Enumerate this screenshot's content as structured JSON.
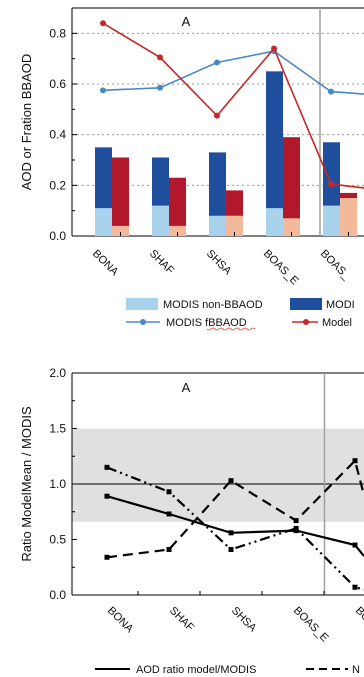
{
  "chart_data": [
    {
      "type": "bar",
      "panel_label": "A",
      "ylabel": "AOD or Fration BBAOD",
      "ylim": [
        0,
        0.9
      ],
      "yticks": [
        "0.0",
        "0.2",
        "0.4",
        "0.6",
        "0.8"
      ],
      "categories": [
        "BONA",
        "SHAF",
        "SHSA",
        "BOAS_E",
        "BOAS_"
      ],
      "bar_series": [
        {
          "name": "MODIS non-BBAOD",
          "kind": "bar-base",
          "group": "modis",
          "color": "#a9d3ec",
          "values": [
            0.11,
            0.12,
            0.08,
            0.11,
            0.12
          ]
        },
        {
          "name": "MODI",
          "kind": "bar-total",
          "group": "modis",
          "color": "#1f4e9c",
          "values": [
            0.35,
            0.31,
            0.33,
            0.65,
            0.37
          ]
        },
        {
          "name": "",
          "kind": "bar-base",
          "group": "model",
          "color": "#f2b99a",
          "values": [
            0.04,
            0.04,
            0.08,
            0.07,
            0.15
          ]
        },
        {
          "name": "",
          "kind": "bar-total",
          "group": "model",
          "color": "#b2182b",
          "values": [
            0.31,
            0.23,
            0.18,
            0.39,
            0.17
          ]
        }
      ],
      "line_series": [
        {
          "name": "MODIS fBBAOD",
          "color": "#4a87c5",
          "values": [
            0.575,
            0.585,
            0.685,
            0.73,
            0.57
          ]
        },
        {
          "name": "Model",
          "color": "#c62828",
          "values": [
            0.84,
            0.705,
            0.475,
            0.74,
            0.205
          ]
        }
      ],
      "grid": "dotted horizontal",
      "divider_after_category": "BOAS_E",
      "legend_placement": "bottom",
      "legend": [
        {
          "label": "MODIS non-BBAOD",
          "marker": "box",
          "color": "#a9d3ec"
        },
        {
          "label": "MODI",
          "marker": "box",
          "color": "#1f4e9c"
        },
        {
          "label": "MODIS fBBAOD",
          "marker": "line-dot",
          "color": "#4a87c5"
        },
        {
          "label": "Model",
          "marker": "line-dot",
          "color": "#c62828"
        }
      ]
    },
    {
      "type": "line",
      "panel_label": "A",
      "ylabel": "Ratio ModelMean / MODIS",
      "ylim": [
        0,
        2.0
      ],
      "yticks": [
        "0.0",
        "0.5",
        "1.0",
        "1.5",
        "2.0"
      ],
      "categories": [
        "BONA",
        "SHAF",
        "SHSA",
        "BOAS_E",
        "BOAS_"
      ],
      "reference_line": 1.0,
      "shaded_band": [
        0.66,
        1.5
      ],
      "divider_after_category": "BOAS_E",
      "series": [
        {
          "name": "AOD ratio model/MODIS",
          "style": "solid",
          "x": [
            0,
            1,
            2,
            3.05,
            4,
            4.8
          ],
          "values": [
            0.89,
            0.73,
            0.56,
            0.58,
            0.45,
            0.35
          ]
        },
        {
          "name": "",
          "style": "dashed",
          "x": [
            0,
            1,
            2,
            3.05,
            4,
            4.8
          ],
          "values": [
            0.34,
            0.41,
            1.03,
            0.67,
            1.21,
            0.9
          ]
        },
        {
          "name": "",
          "style": "dash-dot-dot",
          "x": [
            0,
            1,
            2,
            3.05,
            4,
            4.8
          ],
          "values": [
            1.15,
            0.93,
            0.41,
            0.6,
            0.07,
            0.05
          ]
        }
      ],
      "legend_placement": "bottom",
      "legend": [
        {
          "label": "AOD ratio model/MODIS",
          "style": "solid"
        },
        {
          "label": "N",
          "style": "dashed"
        }
      ]
    }
  ]
}
